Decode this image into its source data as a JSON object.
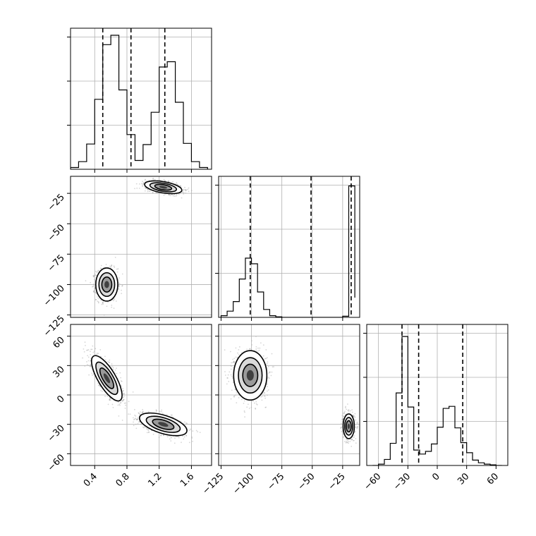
{
  "chart_data": {
    "type": "corner",
    "grid": true,
    "parameters": [
      {
        "ticks": [
          0.4,
          0.8,
          1.2,
          1.6
        ],
        "tick_labels": [
          "0.4",
          "0.8",
          "1.2",
          "1.6"
        ],
        "range": [
          0.1,
          1.85
        ]
      },
      {
        "ticks": [
          -125,
          -100,
          -75,
          -50,
          -25
        ],
        "tick_labels": [
          "−125",
          "−100",
          "−75",
          "−50",
          "−25"
        ],
        "range": [
          -127,
          -11
        ]
      },
      {
        "ticks": [
          -60,
          -30,
          0,
          30,
          60
        ],
        "tick_labels": [
          "−60",
          "−30",
          "0",
          "30",
          "60"
        ],
        "range": [
          -72,
          72
        ]
      }
    ],
    "marginals": [
      {
        "param": 0,
        "bin_edges": [
          0.1,
          0.2,
          0.3,
          0.4,
          0.5,
          0.6,
          0.7,
          0.8,
          0.9,
          1.0,
          1.1,
          1.2,
          1.3,
          1.4,
          1.5,
          1.6,
          1.7,
          1.8
        ],
        "counts": [
          3,
          13,
          43,
          119,
          212,
          228,
          135,
          59,
          15,
          42,
          97,
          174,
          183,
          114,
          44,
          13,
          3
        ],
        "y_max": 240,
        "quantiles": [
          0.5,
          0.85,
          1.27
        ]
      },
      {
        "param": 1,
        "bin_edges": [
          -125,
          -120,
          -115,
          -110,
          -105,
          -100,
          -95,
          -90,
          -85,
          -80,
          -75,
          -70,
          -65,
          -60,
          -55,
          -50,
          -45,
          -40,
          -35,
          -30,
          -25,
          -20,
          -15
        ],
        "counts": [
          3,
          11,
          28,
          68,
          105,
          95,
          45,
          14,
          3,
          1,
          0,
          0,
          0,
          0,
          0,
          0,
          0,
          0,
          0,
          0,
          2,
          233,
          35
        ],
        "y_max": 250,
        "quantiles": [
          -101,
          -51,
          -18
        ]
      },
      {
        "param": 2,
        "bin_edges": [
          -66,
          -60,
          -54,
          -48,
          -42,
          -36,
          -30,
          -24,
          -18,
          -12,
          -6,
          0,
          6,
          12,
          18,
          24,
          30,
          36,
          42,
          48,
          54,
          60,
          66
        ],
        "counts": [
          0,
          2,
          9,
          33,
          108,
          192,
          87,
          23,
          17,
          21,
          32,
          57,
          85,
          88,
          56,
          34,
          19,
          8,
          4,
          2,
          1,
          0
        ],
        "y_max": 210,
        "quantiles": [
          -36,
          -19,
          26
        ]
      }
    ],
    "joints": [
      {
        "x_param": 0,
        "y_param": 1,
        "modes": [
          {
            "center": [
              0.55,
              -100
            ],
            "sd": [
              0.065,
              6.5
            ],
            "rho": 0,
            "n": 1100
          },
          {
            "center": [
              1.25,
              -20
            ],
            "sd": [
              0.11,
              2.5
            ],
            "rho": -0.45,
            "n": 1100
          }
        ]
      },
      {
        "x_param": 0,
        "y_param": 2,
        "modes": [
          {
            "center": [
              0.55,
              17
            ],
            "sd": [
              0.09,
              11
            ],
            "rho": -0.75,
            "n": 1100
          },
          {
            "center": [
              1.25,
              -30
            ],
            "sd": [
              0.14,
              5.5
            ],
            "rho": -0.55,
            "n": 1100
          }
        ]
      },
      {
        "x_param": 1,
        "y_param": 2,
        "modes": [
          {
            "center": [
              -101,
              20
            ],
            "sd": [
              6.5,
              12
            ],
            "rho": 0,
            "n": 1100
          },
          {
            "center": [
              -20,
              -32
            ],
            "sd": [
              2.2,
              6
            ],
            "rho": 0,
            "n": 1100
          }
        ]
      }
    ]
  }
}
